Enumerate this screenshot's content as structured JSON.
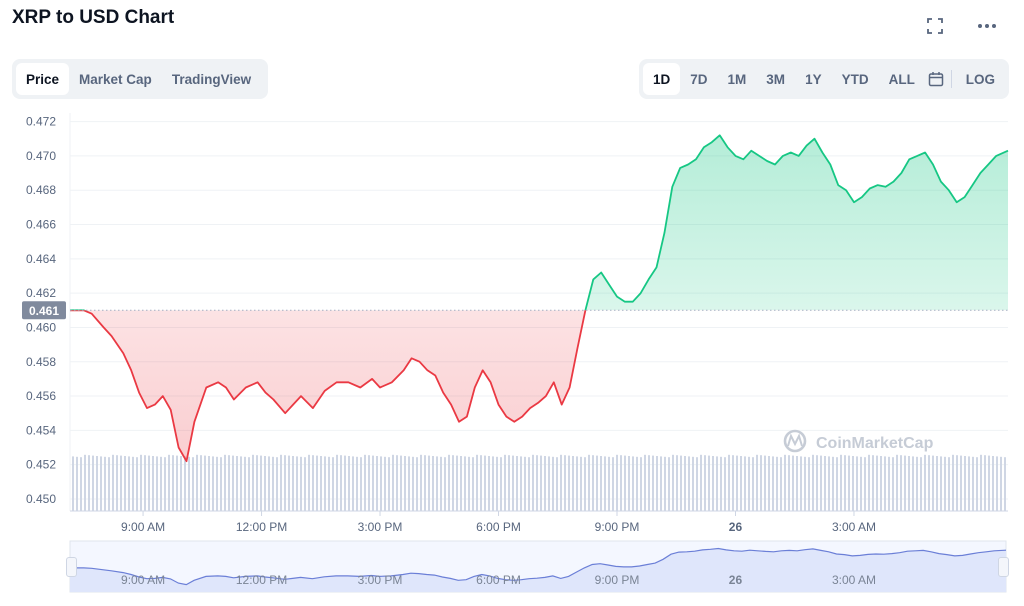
{
  "header": {
    "title": "XRP to USD Chart"
  },
  "icons": {
    "fullscreen": "fullscreen-icon",
    "more": "more-icon",
    "calendar": "calendar-icon",
    "watermark": "coinmarketcap-logo"
  },
  "view_tabs": [
    {
      "label": "Price",
      "active": true
    },
    {
      "label": "Market Cap",
      "active": false
    },
    {
      "label": "TradingView",
      "active": false
    }
  ],
  "range_tabs": [
    {
      "label": "1D",
      "active": true
    },
    {
      "label": "7D",
      "active": false
    },
    {
      "label": "1M",
      "active": false
    },
    {
      "label": "3M",
      "active": false
    },
    {
      "label": "1Y",
      "active": false
    },
    {
      "label": "YTD",
      "active": false
    },
    {
      "label": "ALL",
      "active": false
    }
  ],
  "log_label": "LOG",
  "watermark_text": "CoinMarketCap",
  "colors": {
    "up": "#16c784",
    "down": "#ea3943",
    "volume": "#cfd6e4",
    "navigator_line": "#6b7fd7",
    "navigator_fill": "#dfe6fb",
    "reference_label_bg": "#808a9d"
  },
  "chart_data": {
    "type": "line",
    "title": "XRP to USD Chart",
    "xlabel": "",
    "ylabel": "",
    "y_ticks": [
      "0.472",
      "0.470",
      "0.468",
      "0.466",
      "0.464",
      "0.462",
      "0.460",
      "0.458",
      "0.456",
      "0.454",
      "0.452",
      "0.450"
    ],
    "ylim": [
      0.4493,
      0.4725
    ],
    "x_ticks": [
      "9:00 AM",
      "12:00 PM",
      "3:00 PM",
      "6:00 PM",
      "9:00 PM",
      "26",
      "3:00 AM"
    ],
    "x_tick_hours": [
      9,
      12,
      15,
      18,
      21,
      24,
      27
    ],
    "x_range_hours": [
      7.15,
      30.9
    ],
    "reference_price": 0.461,
    "reference_label": "0.461",
    "grid": true,
    "series": [
      {
        "x": [
          7.15,
          7.5,
          7.7,
          8.0,
          8.2,
          8.5,
          8.7,
          8.9,
          9.1,
          9.3,
          9.5,
          9.7,
          9.9,
          10.1,
          10.3,
          10.6,
          10.9,
          11.1,
          11.3,
          11.6,
          11.9,
          12.1,
          12.3,
          12.6,
          12.8,
          13.0,
          13.3,
          13.6,
          13.9,
          14.2,
          14.5,
          14.8,
          15.0,
          15.3,
          15.6,
          15.8,
          16.0,
          16.2,
          16.4,
          16.6,
          16.8,
          17.0,
          17.2,
          17.4,
          17.6,
          17.8,
          18.0,
          18.2,
          18.4,
          18.6,
          18.8,
          19.0,
          19.2,
          19.4,
          19.6,
          19.8,
          20.0,
          20.2,
          20.4,
          20.6,
          20.8,
          21.0,
          21.2,
          21.4,
          21.6,
          21.8,
          22.0,
          22.2,
          22.4,
          22.6,
          22.8,
          23.0,
          23.2,
          23.4,
          23.6,
          23.8,
          24.0,
          24.2,
          24.4,
          24.6,
          24.8,
          25.0,
          25.2,
          25.4,
          25.6,
          25.8,
          26.0,
          26.2,
          26.4,
          26.6,
          26.8,
          27.0,
          27.2,
          27.4,
          27.6,
          27.8,
          28.0,
          28.2,
          28.4,
          28.6,
          28.8,
          29.0,
          29.2,
          29.4,
          29.6,
          29.8,
          30.0,
          30.2,
          30.4,
          30.6,
          30.9
        ],
        "y": [
          0.461,
          0.461,
          0.4608,
          0.46,
          0.4595,
          0.4585,
          0.4575,
          0.4562,
          0.4553,
          0.4555,
          0.456,
          0.4552,
          0.453,
          0.4522,
          0.4545,
          0.4565,
          0.4568,
          0.4565,
          0.4558,
          0.4565,
          0.4568,
          0.4562,
          0.4558,
          0.455,
          0.4555,
          0.456,
          0.4553,
          0.4563,
          0.4568,
          0.4568,
          0.4565,
          0.457,
          0.4565,
          0.4568,
          0.4575,
          0.4582,
          0.458,
          0.4575,
          0.4572,
          0.4562,
          0.4555,
          0.4545,
          0.4548,
          0.4565,
          0.4575,
          0.4568,
          0.4555,
          0.4548,
          0.4545,
          0.4548,
          0.4553,
          0.4556,
          0.456,
          0.4568,
          0.4555,
          0.4565,
          0.4588,
          0.461,
          0.4628,
          0.4632,
          0.4625,
          0.4618,
          0.4615,
          0.4615,
          0.462,
          0.4628,
          0.4635,
          0.4655,
          0.4682,
          0.4693,
          0.4695,
          0.4698,
          0.4705,
          0.4708,
          0.4712,
          0.4705,
          0.47,
          0.4698,
          0.4703,
          0.47,
          0.4697,
          0.4695,
          0.47,
          0.4702,
          0.47,
          0.4706,
          0.471,
          0.4702,
          0.4695,
          0.4683,
          0.468,
          0.4673,
          0.4676,
          0.4681,
          0.4683,
          0.4682,
          0.4685,
          0.469,
          0.4698,
          0.47,
          0.4702,
          0.4695,
          0.4685,
          0.468,
          0.4673,
          0.4676,
          0.4683,
          0.469,
          0.4695,
          0.47,
          0.4703
        ]
      }
    ],
    "volume_note": "volume bars along bottom band"
  }
}
